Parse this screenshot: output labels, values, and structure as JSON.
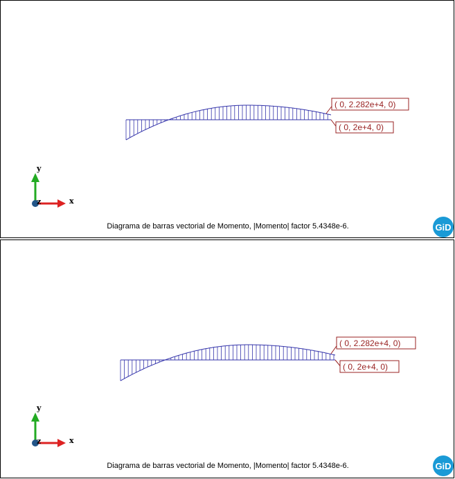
{
  "colors": {
    "diagram": "#3333aa",
    "label": "#992222",
    "x_axis": "#dd2222",
    "y_axis": "#22aa22",
    "z_axis": "#225588",
    "gid_badge": "#1a9ad6"
  },
  "views": [
    {
      "labels": [
        "( 0, 2.282e+4, 0)",
        "( 0, 2e+4, 0)"
      ],
      "axes": {
        "x": "x",
        "y": "y",
        "z": "z"
      },
      "caption": "Diagrama de barras vectorial de Momento, |Momento| factor 5.4348e-6.",
      "logo": "GiD"
    },
    {
      "labels": [
        "( 0, 2.282e+4, 0)",
        "( 0, 2e+4, 0)"
      ],
      "axes": {
        "x": "x",
        "y": "y",
        "z": "z"
      },
      "caption": "Diagrama de barras vectorial de Momento, |Momento| factor 5.4348e-6.",
      "logo": "GiD"
    }
  ]
}
